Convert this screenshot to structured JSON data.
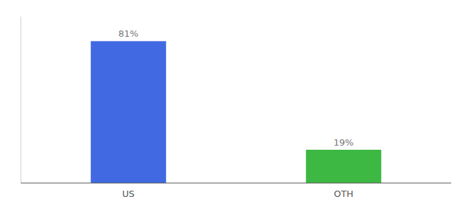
{
  "chart_data": {
    "type": "bar",
    "categories": [
      "US",
      "OTH"
    ],
    "values": [
      81,
      19
    ],
    "value_labels": [
      "81%",
      "19%"
    ],
    "colors": [
      "#4169E1",
      "#3CB843"
    ],
    "ylim": [
      0,
      95
    ],
    "grid": false,
    "data_labels": true,
    "tick_labels": "x"
  }
}
